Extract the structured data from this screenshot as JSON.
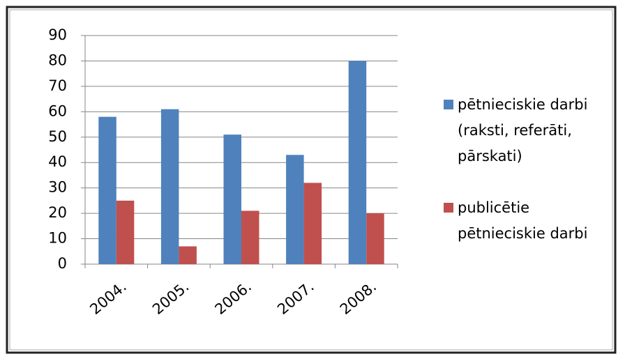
{
  "chart_data": {
    "type": "bar",
    "categories": [
      "2004.",
      "2005.",
      "2006.",
      "2007.",
      "2008."
    ],
    "series": [
      {
        "name": "pētnieciskie darbi (raksti, referāti, pārskati)",
        "color": "#4f81bd",
        "values": [
          58,
          61,
          51,
          43,
          80
        ]
      },
      {
        "name": "publicētie pētnieciskie darbi",
        "color": "#c0504d",
        "values": [
          25,
          7,
          21,
          32,
          20
        ]
      }
    ],
    "ylim": [
      0,
      90
    ],
    "yticks": [
      0,
      10,
      20,
      30,
      40,
      50,
      60,
      70,
      80,
      90
    ],
    "grid": true,
    "legend": "right"
  }
}
